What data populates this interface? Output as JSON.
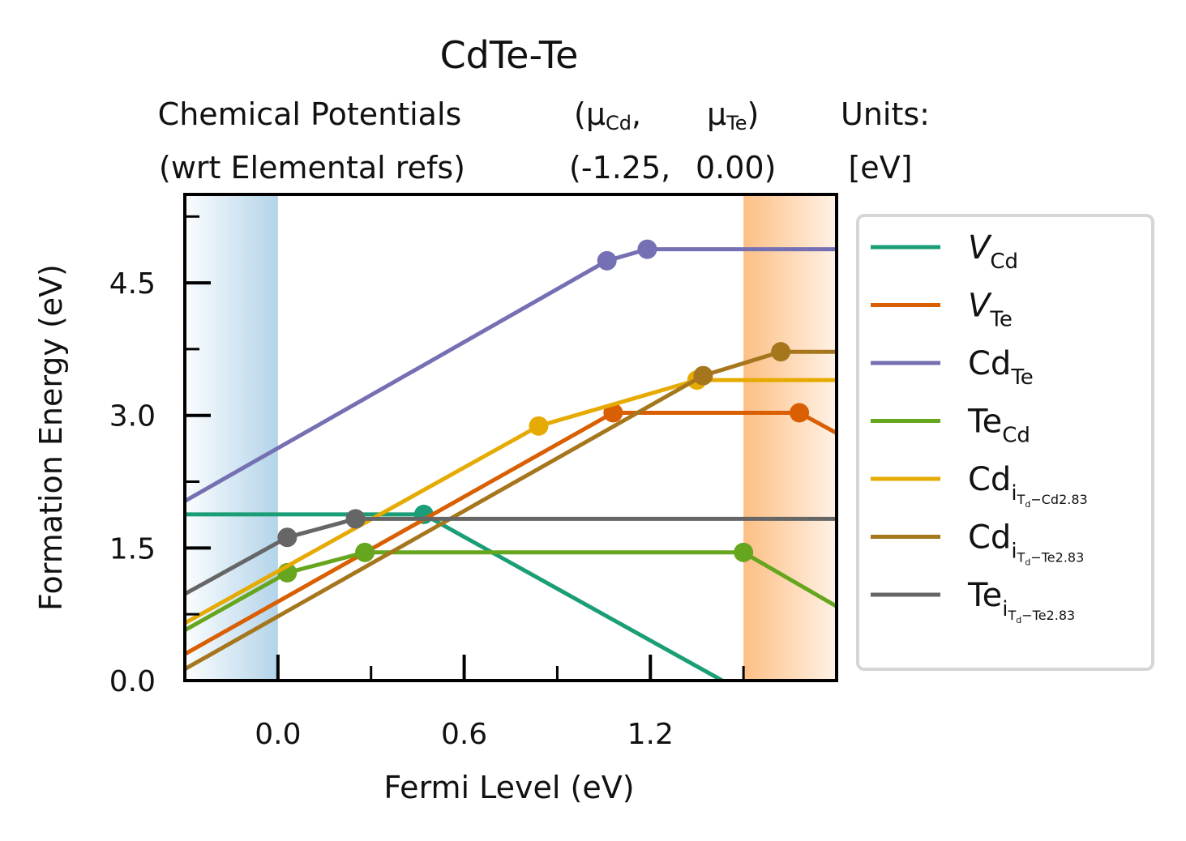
{
  "chart_data": {
    "type": "line",
    "title": "CdTe-Te",
    "subtitle": {
      "col1": [
        "Chemical Potentials",
        "(wrt Elemental refs)"
      ],
      "col2": [
        "(μ",
        "Cd",
        ",",
        "(-1.25,"
      ],
      "col3": [
        "μ",
        "Te",
        ")",
        "0.00)"
      ],
      "col4": [
        "Units:",
        "[eV]"
      ]
    },
    "xlabel": "Fermi Level (eV)",
    "ylabel": "Formation Energy (eV)",
    "xlim": [
      -0.3,
      1.8
    ],
    "ylim": [
      0.0,
      5.5
    ],
    "xticks": [
      0.0,
      0.6,
      1.2
    ],
    "xtick_labels": [
      "0.0",
      "0.6",
      "1.2"
    ],
    "yticks": [
      0.0,
      1.5,
      3.0,
      4.5
    ],
    "ytick_labels": [
      "0.0",
      "1.5",
      "3.0",
      "4.5"
    ],
    "shaded_regions": [
      {
        "x": [
          -0.3,
          0.0
        ],
        "color": "#b3d4ea",
        "side": "vbm"
      },
      {
        "x": [
          1.5,
          1.8
        ],
        "color": "#fdbf85",
        "side": "cbm"
      }
    ],
    "legend_position": "outside-right",
    "series": [
      {
        "name_main": "V",
        "name_sub": "Cd",
        "italic": true,
        "color": "#1b9e77",
        "x": [
          -0.3,
          0.47,
          1.8
        ],
        "y": [
          1.88,
          1.88,
          -0.72
        ],
        "markers": [
          [
            0.47,
            1.88
          ]
        ]
      },
      {
        "name_main": "V",
        "name_sub": "Te",
        "italic": true,
        "color": "#d95f02",
        "x": [
          -0.3,
          1.08,
          1.68,
          1.8
        ],
        "y": [
          0.3,
          3.03,
          3.03,
          2.8
        ],
        "markers": [
          [
            1.08,
            3.03
          ],
          [
            1.68,
            3.03
          ]
        ]
      },
      {
        "name_main": "Cd",
        "name_sub": "Te",
        "italic": false,
        "color": "#7570b3",
        "x": [
          -0.3,
          1.06,
          1.19,
          1.8
        ],
        "y": [
          2.03,
          4.75,
          4.88,
          4.88
        ],
        "markers": [
          [
            1.06,
            4.75
          ],
          [
            1.19,
            4.88
          ]
        ]
      },
      {
        "name_main": "Te",
        "name_sub": "Cd",
        "italic": false,
        "color": "#66a61e",
        "x": [
          -0.3,
          0.03,
          0.28,
          1.5,
          1.8
        ],
        "y": [
          0.57,
          1.22,
          1.45,
          1.45,
          0.84
        ],
        "markers": [
          [
            0.03,
            1.22
          ],
          [
            0.28,
            1.45
          ],
          [
            1.5,
            1.45
          ]
        ]
      },
      {
        "name_main": "Cd",
        "name_sub": "i",
        "name_subsub": "T",
        "name_sub3": "d",
        "name_tail": "−Cd2.83",
        "italic": false,
        "color": "#e6ab02",
        "x": [
          -0.3,
          0.84,
          1.35,
          1.8
        ],
        "y": [
          0.65,
          2.88,
          3.4,
          3.4
        ],
        "markers": [
          [
            0.84,
            2.88
          ],
          [
            1.35,
            3.4
          ]
        ]
      },
      {
        "name_main": "Cd",
        "name_sub": "i",
        "name_subsub": "T",
        "name_sub3": "d",
        "name_tail": "−Te2.83",
        "italic": false,
        "color": "#a6761d",
        "x": [
          -0.3,
          1.37,
          1.62,
          1.8
        ],
        "y": [
          0.13,
          3.45,
          3.72,
          3.72
        ],
        "markers": [
          [
            1.37,
            3.45
          ],
          [
            1.62,
            3.72
          ]
        ]
      },
      {
        "name_main": "Te",
        "name_sub": "i",
        "name_subsub": "T",
        "name_sub3": "d",
        "name_tail": "−Te2.83",
        "italic": false,
        "color": "#666666",
        "x": [
          -0.3,
          0.03,
          0.25,
          1.8
        ],
        "y": [
          0.98,
          1.62,
          1.83,
          1.83
        ],
        "markers": [
          [
            0.03,
            1.62
          ],
          [
            0.25,
            1.83
          ]
        ]
      }
    ]
  }
}
